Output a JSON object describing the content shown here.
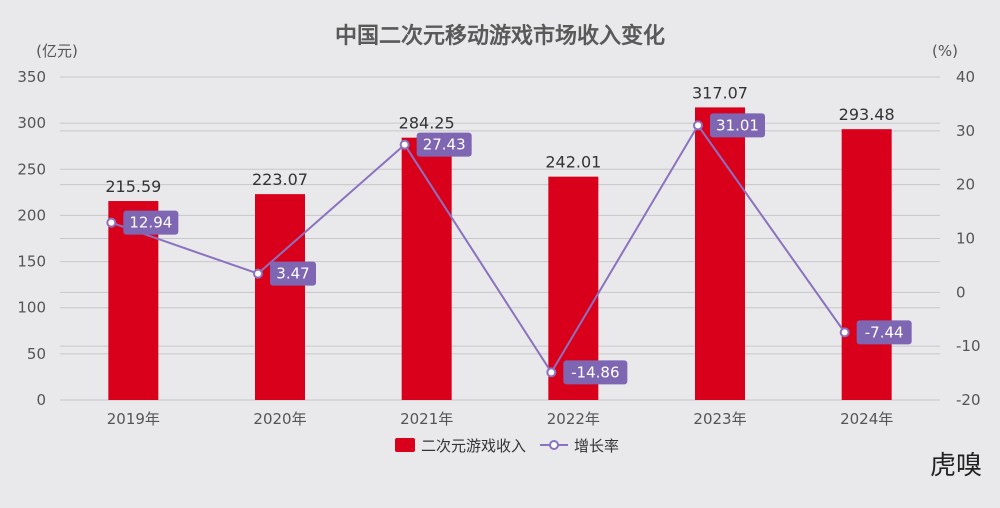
{
  "chart_data": {
    "type": "bar",
    "title": "中国二次元移动游戏市场收入变化",
    "categories": [
      "2019年",
      "2020年",
      "2021年",
      "2022年",
      "2023年",
      "2024年"
    ],
    "series": [
      {
        "name": "二次元游戏收入",
        "kind": "bar",
        "axis": "left",
        "values": [
          215.59,
          223.07,
          284.25,
          242.01,
          317.07,
          293.48
        ]
      },
      {
        "name": "增长率",
        "kind": "line",
        "axis": "right",
        "values": [
          12.94,
          3.47,
          27.43,
          -14.86,
          31.01,
          -7.44
        ]
      }
    ],
    "y_left": {
      "unit": "(亿元)",
      "range": [
        0,
        350
      ],
      "ticks": [
        0,
        50,
        100,
        150,
        200,
        250,
        300,
        350
      ]
    },
    "y_right": {
      "unit": "(%)",
      "range": [
        -20,
        40
      ],
      "ticks": [
        -20,
        -10,
        0,
        10,
        20,
        30,
        40
      ]
    },
    "legend": {
      "position": "bottom-center"
    },
    "grid": true
  },
  "colors": {
    "bar": "#d9001b",
    "line": "#8b72bf",
    "label_bg": "#7e66b2",
    "grid": "#c8c8cc",
    "background": "#e9e9eb"
  },
  "logo_text": "虎嗅"
}
